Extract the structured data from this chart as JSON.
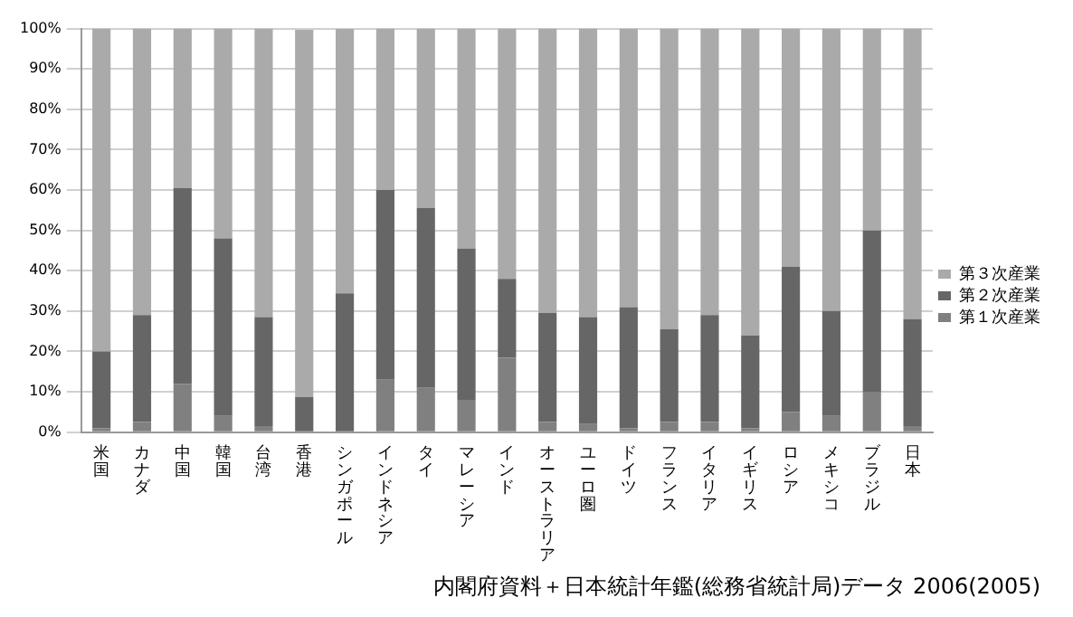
{
  "chart_data": {
    "type": "bar",
    "stacked": true,
    "categories": [
      "米国",
      "カナダ",
      "中国",
      "韓国",
      "台湾",
      "香港",
      "シンガポール",
      "インドネシア",
      "タイ",
      "マレーシア",
      "インド",
      "オーストラリア",
      "ユーロ圏",
      "ドイツ",
      "フランス",
      "イタリア",
      "イギリス",
      "ロシア",
      "メキシコ",
      "ブラジル",
      "日本"
    ],
    "series": [
      {
        "name": "第１次産業",
        "color": "#808080",
        "values": [
          1,
          2.5,
          12,
          4,
          1.5,
          null,
          null,
          13,
          11,
          8,
          18.5,
          2.5,
          2,
          1,
          2.5,
          2.5,
          1,
          5,
          4,
          10,
          1.5
        ]
      },
      {
        "name": "第２次産業",
        "color": "#666666",
        "values": [
          19,
          26.5,
          48.5,
          44,
          27,
          8.7,
          34.4,
          47,
          44.5,
          37.5,
          19.5,
          27,
          26.5,
          30,
          23,
          26.5,
          23,
          36,
          26,
          40,
          26.5
        ]
      },
      {
        "name": "第３次産業",
        "color": "#aaaaaa",
        "values": [
          80,
          71,
          39.5,
          52,
          71.5,
          91,
          65.5,
          40,
          44.5,
          54.5,
          62,
          70.5,
          71.5,
          69,
          74.5,
          71,
          76,
          59,
          70,
          50,
          72
        ]
      }
    ],
    "ylim": [
      0,
      100
    ],
    "yticks": [
      {
        "value": 0,
        "label": "0%"
      },
      {
        "value": 10,
        "label": "10%"
      },
      {
        "value": 20,
        "label": "20%"
      },
      {
        "value": 30,
        "label": "30%"
      },
      {
        "value": 40,
        "label": "40%"
      },
      {
        "value": 50,
        "label": "50%"
      },
      {
        "value": 60,
        "label": "60%"
      },
      {
        "value": 70,
        "label": "70%"
      },
      {
        "value": 80,
        "label": "80%"
      },
      {
        "value": 90,
        "label": "90%"
      },
      {
        "value": 100,
        "label": "100%"
      }
    ],
    "grid": "y",
    "legend": "right",
    "annotations": [
      "内閣府資料＋日本統計年鑑(総務省統計局)データ 2006(2005)"
    ]
  }
}
